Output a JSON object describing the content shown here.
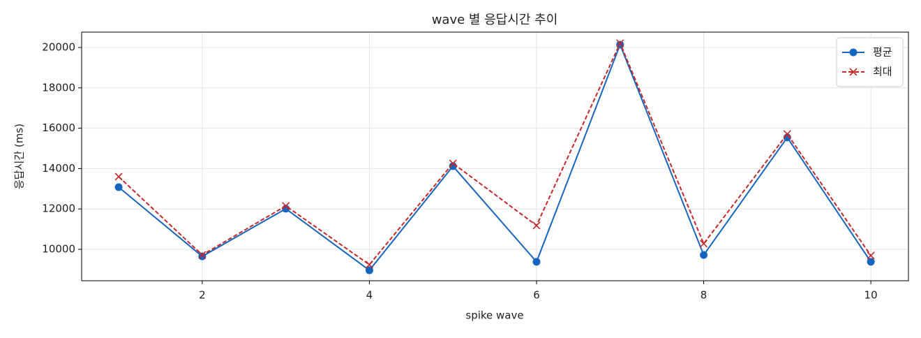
{
  "chart_data": {
    "type": "line",
    "title": "wave 별 응답시간 추이",
    "xlabel": "spike wave",
    "ylabel": "응답시간 (ms)",
    "x": [
      1,
      2,
      3,
      4,
      5,
      6,
      7,
      8,
      9,
      10
    ],
    "series": [
      {
        "name": "평균",
        "color": "#1565c0",
        "dash": false,
        "marker": "o",
        "values": [
          13080,
          9650,
          12010,
          8960,
          14120,
          9380,
          20140,
          9720,
          15540,
          9380
        ]
      },
      {
        "name": "최대",
        "color": "#c62828",
        "dash": true,
        "marker": "x",
        "values": [
          13600,
          9720,
          12150,
          9240,
          14260,
          11180,
          20210,
          10280,
          15710,
          9690
        ]
      }
    ],
    "xlim": [
      0.557,
      10.45
    ],
    "ylim": [
      8443,
      20761
    ],
    "xticks": [
      2,
      4,
      6,
      8,
      10
    ],
    "yticks": [
      10000,
      12000,
      14000,
      16000,
      18000,
      20000
    ],
    "grid": true,
    "legend": "upper right"
  }
}
